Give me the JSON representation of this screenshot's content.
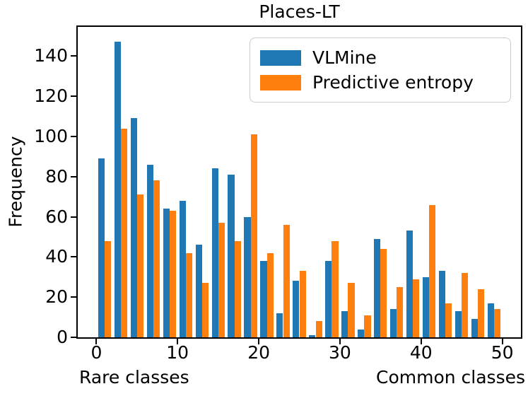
{
  "chart_data": {
    "type": "bar",
    "title": "Places-LT",
    "ylabel": "Frequency",
    "xlabel_left": "Rare classes",
    "xlabel_right": "Common classes",
    "legend_position": "upper right",
    "grid": false,
    "bar_width": 0.8,
    "bin_centers": [
      1,
      3,
      5,
      7,
      9,
      11,
      13,
      15,
      17,
      19,
      21,
      23,
      25,
      27,
      29,
      31,
      33,
      35,
      37,
      39,
      41,
      43,
      45,
      47,
      49
    ],
    "series": [
      {
        "name": "VLMine",
        "color": "#1f77b4",
        "values": [
          89,
          147,
          109,
          86,
          64,
          68,
          46,
          84,
          81,
          60,
          38,
          12,
          28,
          1,
          38,
          13,
          4,
          49,
          14,
          53,
          30,
          33,
          13,
          9,
          17
        ]
      },
      {
        "name": "Predictive entropy",
        "color": "#ff7f0e",
        "values": [
          48,
          104,
          71,
          78,
          63,
          42,
          27,
          57,
          48,
          101,
          42,
          56,
          33,
          8,
          48,
          27,
          11,
          44,
          25,
          29,
          66,
          17,
          32,
          24,
          14
        ]
      }
    ],
    "x_ticks": [
      0,
      10,
      20,
      30,
      40,
      50
    ],
    "y_ticks": [
      0,
      20,
      40,
      60,
      80,
      100,
      120,
      140
    ],
    "xlim": [
      -2.3,
      52.3
    ],
    "ylim": [
      0,
      154.5
    ]
  }
}
